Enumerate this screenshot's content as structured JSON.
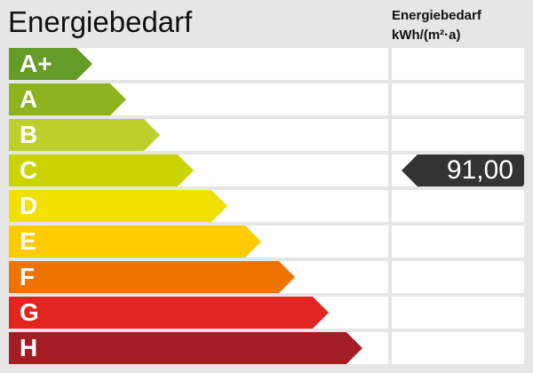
{
  "title": "Energiebedarf",
  "unit_label": {
    "line1": "Energiebedarf",
    "line2": "kWh/(m²·a)"
  },
  "classes": [
    {
      "label": "A+",
      "color": "#639d27"
    },
    {
      "label": "A",
      "color": "#8db31f"
    },
    {
      "label": "B",
      "color": "#bccf2c"
    },
    {
      "label": "C",
      "color": "#cbd300"
    },
    {
      "label": "D",
      "color": "#f2e000"
    },
    {
      "label": "E",
      "color": "#fecb00"
    },
    {
      "label": "F",
      "color": "#ee7402"
    },
    {
      "label": "G",
      "color": "#e3251f"
    },
    {
      "label": "H",
      "color": "#a31d23"
    }
  ],
  "indicator": {
    "value": "91,00",
    "class": "C",
    "color": "#333333"
  }
}
